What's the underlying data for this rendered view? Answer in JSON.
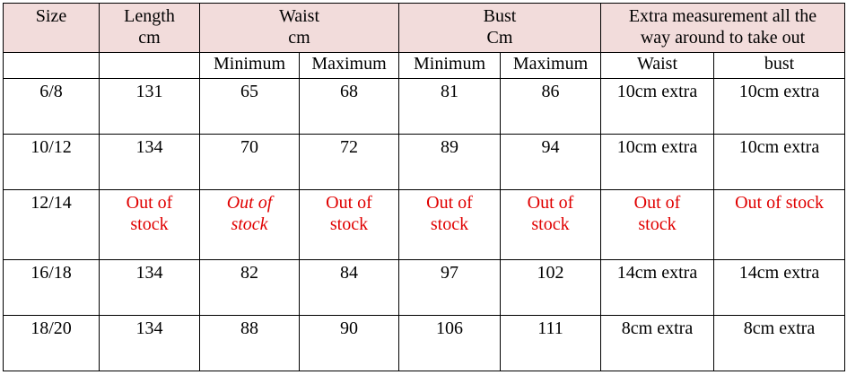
{
  "header": {
    "size": "Size",
    "length": [
      "Length",
      "cm"
    ],
    "waist": [
      "Waist",
      "cm"
    ],
    "bust": [
      "Bust",
      "Cm"
    ],
    "extra": [
      "Extra measurement all the",
      "way around to take out"
    ]
  },
  "subheader": {
    "waist_min": "Minimum",
    "waist_max": "Maximum",
    "bust_min": "Minimum",
    "bust_max": "Maximum",
    "extra_waist": "Waist",
    "extra_bust": "bust"
  },
  "rows": [
    {
      "size": "6/8",
      "length": "131",
      "waist_min": "65",
      "waist_max": "68",
      "bust_min": "81",
      "bust_max": "86",
      "extra_waist": "10cm extra",
      "extra_bust": "10cm extra"
    },
    {
      "size": "10/12",
      "length": "134",
      "waist_min": "70",
      "waist_max": "72",
      "bust_min": "89",
      "bust_max": "94",
      "extra_waist": "10cm extra",
      "extra_bust": "10cm extra"
    },
    {
      "size": "12/14",
      "length": [
        "Out of",
        "stock"
      ],
      "waist_min": [
        "Out of",
        "stock"
      ],
      "waist_max": [
        "Out of",
        "stock"
      ],
      "bust_min": [
        "Out of",
        "stock"
      ],
      "bust_max": [
        "Out of",
        "stock"
      ],
      "extra_waist": [
        "Out of",
        "stock"
      ],
      "extra_bust": "Out of stock"
    },
    {
      "size": "16/18",
      "length": "134",
      "waist_min": "82",
      "waist_max": "84",
      "bust_min": "97",
      "bust_max": "102",
      "extra_waist": "14cm extra",
      "extra_bust": "14cm extra"
    },
    {
      "size": "18/20",
      "length": "134",
      "waist_min": "88",
      "waist_max": "90",
      "bust_min": "106",
      "bust_max": "111",
      "extra_waist": "8cm extra",
      "extra_bust": "8cm extra"
    }
  ],
  "colors": {
    "header_bg": "#f2dcdb",
    "out_of_stock": "#e00000"
  }
}
